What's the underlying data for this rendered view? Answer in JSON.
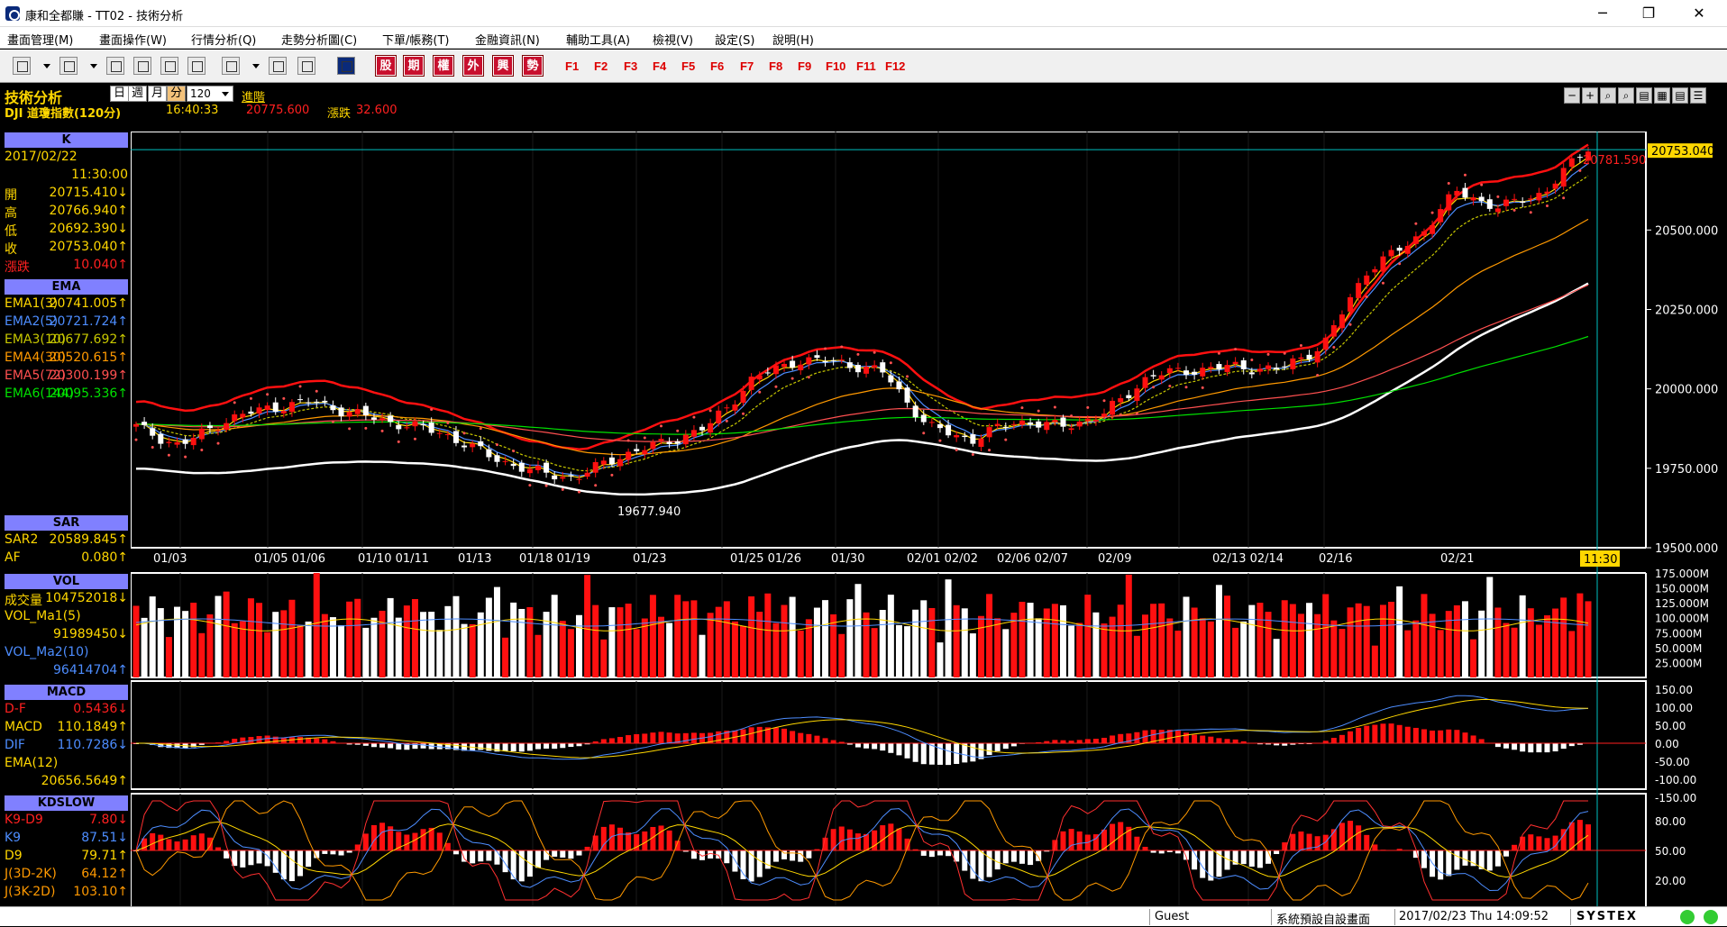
{
  "window": {
    "title": "康和全都賺 - TT02 - 技術分析",
    "minimize": "─",
    "maximize": "❐",
    "close": "✕"
  },
  "menu": [
    "畫面管理(M)",
    "畫面操作(W)",
    "行情分析(Q)",
    "走勢分析圖(C)",
    "下單/帳務(T)",
    "金融資訊(N)",
    "輔助工具(A)",
    "檢視(V)",
    "設定(S)",
    "說明(H)"
  ],
  "toolbar": {
    "cbtns": [
      "股",
      "期",
      "權",
      "外",
      "興",
      "勢"
    ],
    "fkeys": [
      "F1",
      "F2",
      "F3",
      "F4",
      "F5",
      "F6",
      "F7",
      "F8",
      "F9",
      "F10",
      "F11",
      "F12"
    ]
  },
  "header": {
    "title": "技術分析",
    "periods": [
      "日",
      "週",
      "月",
      "分"
    ],
    "selected_period": "分",
    "interval": "120",
    "advanced": "進階",
    "symbol": "DJI  道瓊指數(120分)",
    "time": "16:40:33",
    "price": "20775.600",
    "change_label": "漲跌",
    "change": "32.600",
    "right_tools": [
      "─",
      "+",
      "⌕",
      "⌕",
      "▤",
      "▦",
      "▤",
      "☰"
    ]
  },
  "panels": {
    "k": {
      "header": "K",
      "date": "2017/02/22",
      "time": "11:30:00",
      "rows": [
        {
          "l": "開",
          "v": "20715.410",
          "a": "↓",
          "c": "#ffd700"
        },
        {
          "l": "高",
          "v": "20766.940",
          "a": "↑",
          "c": "#ffd700"
        },
        {
          "l": "低",
          "v": "20692.390",
          "a": "↓",
          "c": "#ffd700"
        },
        {
          "l": "收",
          "v": "20753.040",
          "a": "↑",
          "c": "#ffd700"
        },
        {
          "l": "漲跌",
          "v": "10.040",
          "a": "↑",
          "c": "#ff2020"
        }
      ]
    },
    "ema": {
      "header": "EMA",
      "rows": [
        {
          "l": "EMA1(3)",
          "v": "20741.005",
          "a": "↑",
          "c": "#ffd700"
        },
        {
          "l": "EMA2(5)",
          "v": "20721.724",
          "a": "↑",
          "c": "#4d8dff"
        },
        {
          "l": "EMA3(10)",
          "v": "20677.692",
          "a": "↑",
          "c": "#c8c800"
        },
        {
          "l": "EMA4(30)",
          "v": "20520.615",
          "a": "↑",
          "c": "#ff9900"
        },
        {
          "l": "EMA5(72)",
          "v": "20300.199",
          "a": "↑",
          "c": "#ff5050"
        },
        {
          "l": "EMA6(144)",
          "v": "20095.336",
          "a": "↑",
          "c": "#00e000"
        }
      ]
    },
    "sar": {
      "header": "SAR",
      "rows": [
        {
          "l": "SAR2",
          "v": "20589.845",
          "a": "↑",
          "c": "#ffd700"
        },
        {
          "l": "AF",
          "v": "0.080",
          "a": "↑",
          "c": "#ffd700"
        }
      ]
    },
    "vol": {
      "header": "VOL",
      "rows": [
        {
          "l": "成交量",
          "v": "104752018",
          "a": "↓",
          "c": "#ffd700"
        },
        {
          "l": "VOL_Ma1(5)",
          "v": "",
          "a": "",
          "c": "#ffd700"
        },
        {
          "l": "",
          "v": "91989450",
          "a": "↓",
          "c": "#ffd700"
        },
        {
          "l": "VOL_Ma2(10)",
          "v": "",
          "a": "",
          "c": "#4d8dff"
        },
        {
          "l": "",
          "v": "96414704",
          "a": "↑",
          "c": "#4d8dff"
        }
      ]
    },
    "macd": {
      "header": "MACD",
      "rows": [
        {
          "l": "D-F",
          "v": "0.5436",
          "a": "↓",
          "c": "#ff2020"
        },
        {
          "l": "MACD",
          "v": "110.1849",
          "a": "↑",
          "c": "#ffd700"
        },
        {
          "l": "DIF",
          "v": "110.7286",
          "a": "↓",
          "c": "#4d8dff"
        },
        {
          "l": "EMA(12)",
          "v": "",
          "a": "",
          "c": "#ffd700"
        },
        {
          "l": "",
          "v": "20656.5649",
          "a": "↑",
          "c": "#ffd700"
        }
      ]
    },
    "kd": {
      "header": "KDSLOW",
      "rows": [
        {
          "l": "K9-D9",
          "v": "7.80",
          "a": "↓",
          "c": "#ff2020"
        },
        {
          "l": "K9",
          "v": "87.51",
          "a": "↓",
          "c": "#4d8dff"
        },
        {
          "l": "D9",
          "v": "79.71",
          "a": "↑",
          "c": "#ffd700"
        },
        {
          "l": "J(3D-2K)",
          "v": "64.12",
          "a": "↑",
          "c": "#ff9900"
        },
        {
          "l": "J(3K-2D)",
          "v": "103.10",
          "a": "↑",
          "c": "#ff9900"
        }
      ]
    }
  },
  "chart_data": {
    "type": "candlestick",
    "price_axis": {
      "ticks": [
        "20753.040",
        "20500.000",
        "20250.000",
        "20000.000",
        "19750.000",
        "19500.000"
      ],
      "ylim": [
        19500,
        20810
      ]
    },
    "x_labels": [
      "01/03",
      "01/05 01/06",
      "01/10 01/11",
      "01/13",
      "01/18 01/19",
      "01/23",
      "01/25 01/26",
      "01/30",
      "02/01 02/02",
      "02/06 02/07",
      "02/09",
      "02/13 02/14",
      "02/16",
      "02/21"
    ],
    "cursor_time": "11:30",
    "annotations": {
      "max": "20781.590",
      "min": "19677.940",
      "last": "20753.040"
    },
    "key_closes": [
      19880,
      19820,
      19900,
      19940,
      19960,
      19920,
      19890,
      19860,
      19790,
      19740,
      19720,
      19790,
      19830,
      19880,
      20030,
      20090,
      20085,
      20050,
      19880,
      19840,
      19900,
      19880,
      19920,
      20040,
      20060,
      20070,
      20060,
      20140,
      20380,
      20460,
      20620,
      20570,
      20620,
      20760
    ],
    "vol_axis": {
      "ticks": [
        "175.000M",
        "150.000M",
        "125.000M",
        "100.000M",
        "75.000M",
        "50.000M",
        "25.000M"
      ]
    },
    "macd_axis": {
      "ticks": [
        "150.00",
        "100.00",
        "50.00",
        "0.00",
        "-50.00",
        "-100.00",
        "-150.00"
      ]
    },
    "kd_axis": {
      "ticks": [
        "80.00",
        "50.00",
        "20.00"
      ]
    }
  },
  "status": {
    "user": "Guest",
    "layout": "系統預設自設畫面",
    "datetime": "2017/02/23 Thu 14:09:52",
    "brand": "SYSTEX"
  }
}
